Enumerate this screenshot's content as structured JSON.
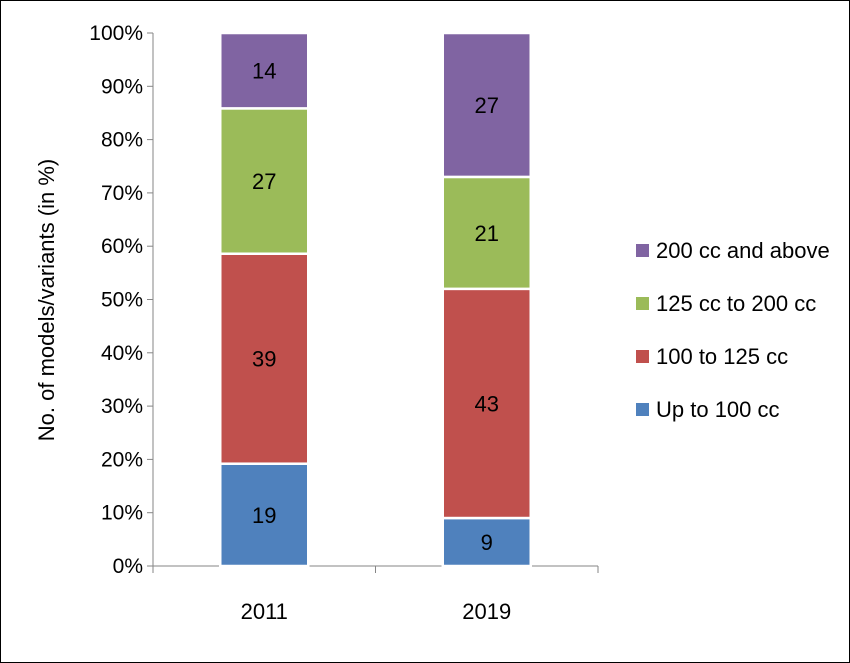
{
  "chart_data": {
    "type": "bar",
    "stacked": true,
    "percent_stacked": true,
    "categories": [
      "2011",
      "2019"
    ],
    "series": [
      {
        "name": "Up to 100 cc",
        "values": [
          19,
          9
        ],
        "color": "#4f81bd"
      },
      {
        "name": "100 to 125 cc",
        "values": [
          39,
          43
        ],
        "color": "#c0504d"
      },
      {
        "name": "125 cc to 200 cc",
        "values": [
          27,
          21
        ],
        "color": "#9bbb59"
      },
      {
        "name": "200 cc and above",
        "values": [
          14,
          27
        ],
        "color": "#8064a2"
      }
    ],
    "ylabel": "No. of models/variants (in %)",
    "ylim": [
      0,
      100
    ],
    "y_ticks": [
      "0%",
      "10%",
      "20%",
      "30%",
      "40%",
      "50%",
      "60%",
      "70%",
      "80%",
      "90%",
      "100%"
    ],
    "legend_position": "right",
    "legend_order": [
      "200 cc and above",
      "125 cc to 200 cc",
      "100 to 125 cc",
      "Up to 100 cc"
    ],
    "grid": false
  }
}
